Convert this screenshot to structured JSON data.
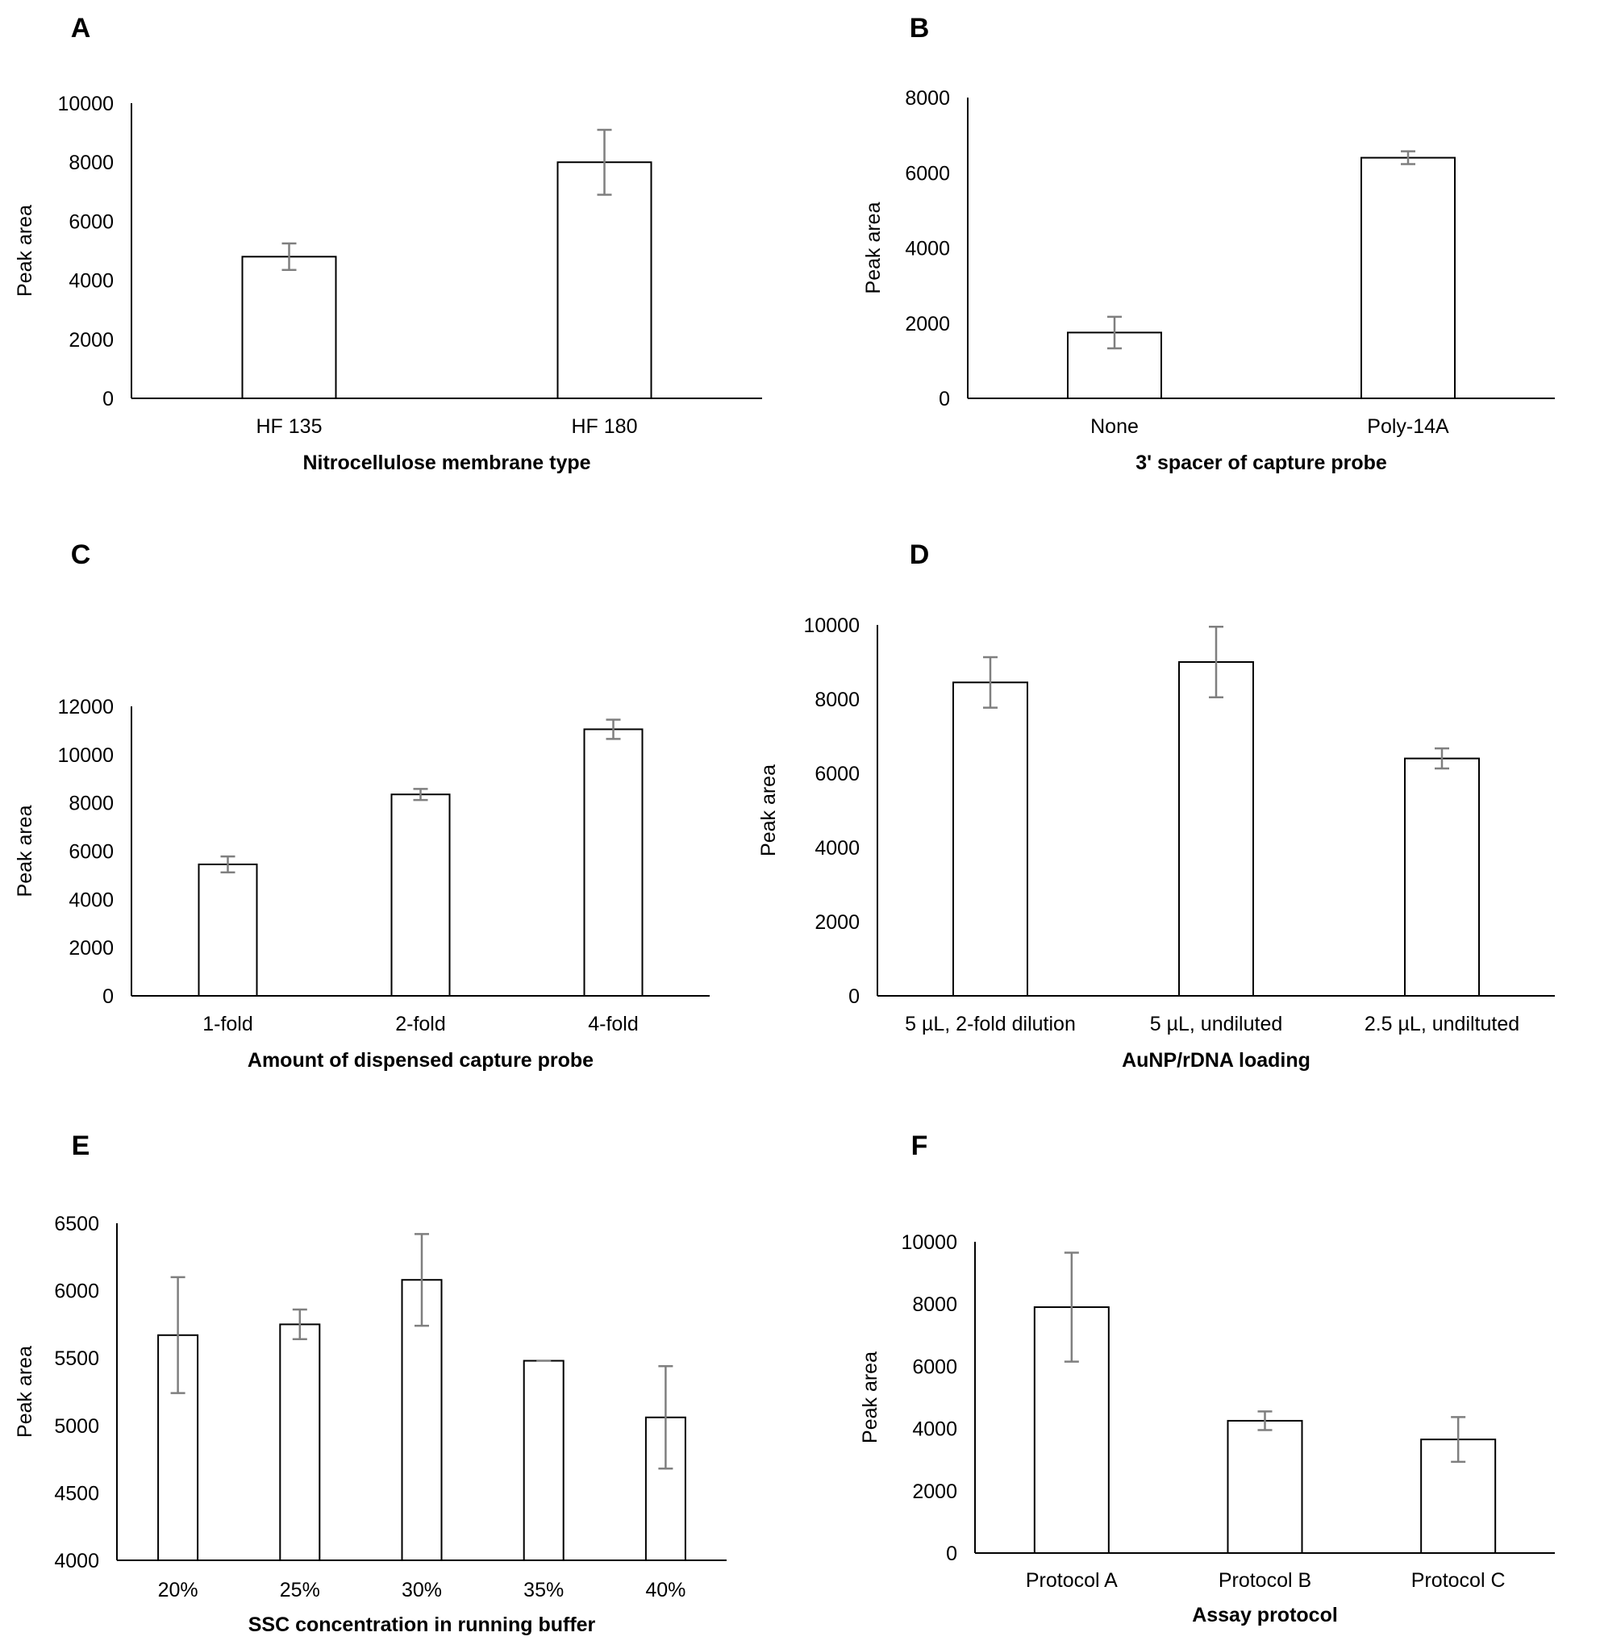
{
  "colors": {
    "bar_fill": "#ffffff",
    "bar_stroke": "#000000",
    "error_bar": "#7f7f7f",
    "axis": "#000000",
    "text": "#000000"
  },
  "chart_data": [
    {
      "panel": "A",
      "type": "bar",
      "categories": [
        "HF 135",
        "HF 180"
      ],
      "values": [
        4800,
        8000
      ],
      "errors": [
        450,
        1100
      ],
      "yticks": [
        0,
        2000,
        4000,
        6000,
        8000,
        10000
      ],
      "ylim": [
        0,
        10000
      ],
      "ylabel": "Peak area",
      "xlabel": "Nitrocellulose membrane type"
    },
    {
      "panel": "B",
      "type": "bar",
      "categories": [
        "None",
        "Poly-14A"
      ],
      "values": [
        1750,
        6400
      ],
      "errors": [
        420,
        170
      ],
      "yticks": [
        0,
        2000,
        4000,
        6000,
        8000
      ],
      "ylim": [
        0,
        8000
      ],
      "ylabel": "Peak area",
      "xlabel": "3' spacer of capture probe"
    },
    {
      "panel": "C",
      "type": "bar",
      "categories": [
        "1-fold",
        "2-fold",
        "4-fold"
      ],
      "values": [
        5450,
        8350,
        11050
      ],
      "errors": [
        330,
        230,
        400
      ],
      "yticks": [
        0,
        2000,
        4000,
        6000,
        8000,
        10000,
        12000
      ],
      "ylim": [
        0,
        12000
      ],
      "ylabel": "Peak area",
      "xlabel": "Amount of dispensed capture probe"
    },
    {
      "panel": "D",
      "type": "bar",
      "categories": [
        "5 µL, 2-fold dilution",
        "5 µL, undiluted",
        "2.5 µL, undiltuted"
      ],
      "values": [
        8450,
        9000,
        6400
      ],
      "errors": [
        680,
        950,
        270
      ],
      "yticks": [
        0,
        2000,
        4000,
        6000,
        8000,
        10000
      ],
      "ylim": [
        0,
        10000
      ],
      "ylabel": "Peak area",
      "xlabel": "AuNP/rDNA loading"
    },
    {
      "panel": "E",
      "type": "bar",
      "categories": [
        "20%",
        "25%",
        "30%",
        "35%",
        "40%"
      ],
      "values": [
        5670,
        5750,
        6080,
        5480,
        5060
      ],
      "errors": [
        430,
        110,
        340,
        0,
        380
      ],
      "yticks": [
        4000,
        4500,
        5000,
        5500,
        6000,
        6500
      ],
      "ylim": [
        4000,
        6500
      ],
      "ylabel": "Peak area",
      "xlabel": "SSC concentration in running buffer"
    },
    {
      "panel": "F",
      "type": "bar",
      "categories": [
        "Protocol A",
        "Protocol B",
        "Protocol C"
      ],
      "values": [
        7900,
        4250,
        3650
      ],
      "errors": [
        1750,
        300,
        720
      ],
      "yticks": [
        0,
        2000,
        4000,
        6000,
        8000,
        10000
      ],
      "ylim": [
        0,
        10000
      ],
      "ylabel": "Peak area",
      "xlabel": "Assay protocol"
    }
  ]
}
